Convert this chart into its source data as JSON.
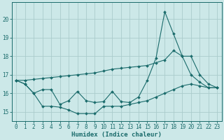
{
  "xlabel": "Humidex (Indice chaleur)",
  "background_color": "#cce8e8",
  "grid_color": "#aacccc",
  "line_color": "#1a6b6b",
  "xlim": [
    -0.5,
    23.5
  ],
  "ylim": [
    14.5,
    20.9
  ],
  "yticks": [
    15,
    16,
    17,
    18,
    19,
    20
  ],
  "xticks": [
    0,
    1,
    2,
    3,
    4,
    5,
    6,
    7,
    8,
    9,
    10,
    11,
    12,
    13,
    14,
    15,
    16,
    17,
    18,
    19,
    20,
    21,
    22,
    23
  ],
  "series1_x": [
    0,
    1,
    2,
    3,
    4,
    5,
    6,
    7,
    8,
    9,
    10,
    11,
    12,
    13,
    14,
    15,
    16,
    17,
    18,
    19,
    20,
    21,
    22,
    23
  ],
  "series1_y": [
    16.7,
    16.5,
    16.0,
    15.3,
    15.3,
    15.25,
    15.1,
    14.9,
    14.9,
    14.9,
    15.3,
    15.3,
    15.3,
    15.4,
    15.5,
    15.6,
    15.8,
    16.0,
    16.2,
    16.4,
    16.5,
    16.4,
    16.3,
    16.3
  ],
  "series2_x": [
    0,
    1,
    2,
    3,
    4,
    5,
    6,
    7,
    8,
    9,
    10,
    11,
    12,
    13,
    14,
    15,
    16,
    17,
    18,
    19,
    20,
    21,
    22,
    23
  ],
  "series2_y": [
    16.7,
    16.5,
    16.0,
    16.2,
    16.2,
    15.4,
    15.6,
    16.1,
    15.6,
    15.5,
    15.55,
    16.1,
    15.55,
    15.5,
    15.8,
    16.7,
    17.9,
    20.4,
    19.2,
    18.0,
    17.0,
    16.6,
    16.3,
    16.3
  ],
  "series3_x": [
    0,
    1,
    2,
    3,
    4,
    5,
    6,
    7,
    8,
    9,
    10,
    11,
    12,
    13,
    14,
    15,
    16,
    17,
    18,
    19,
    20,
    21,
    22,
    23
  ],
  "series3_y": [
    16.7,
    16.7,
    16.75,
    16.8,
    16.85,
    16.9,
    16.95,
    17.0,
    17.05,
    17.1,
    17.2,
    17.3,
    17.35,
    17.4,
    17.45,
    17.5,
    17.65,
    17.8,
    18.3,
    18.0,
    18.0,
    17.0,
    16.5,
    16.3
  ]
}
